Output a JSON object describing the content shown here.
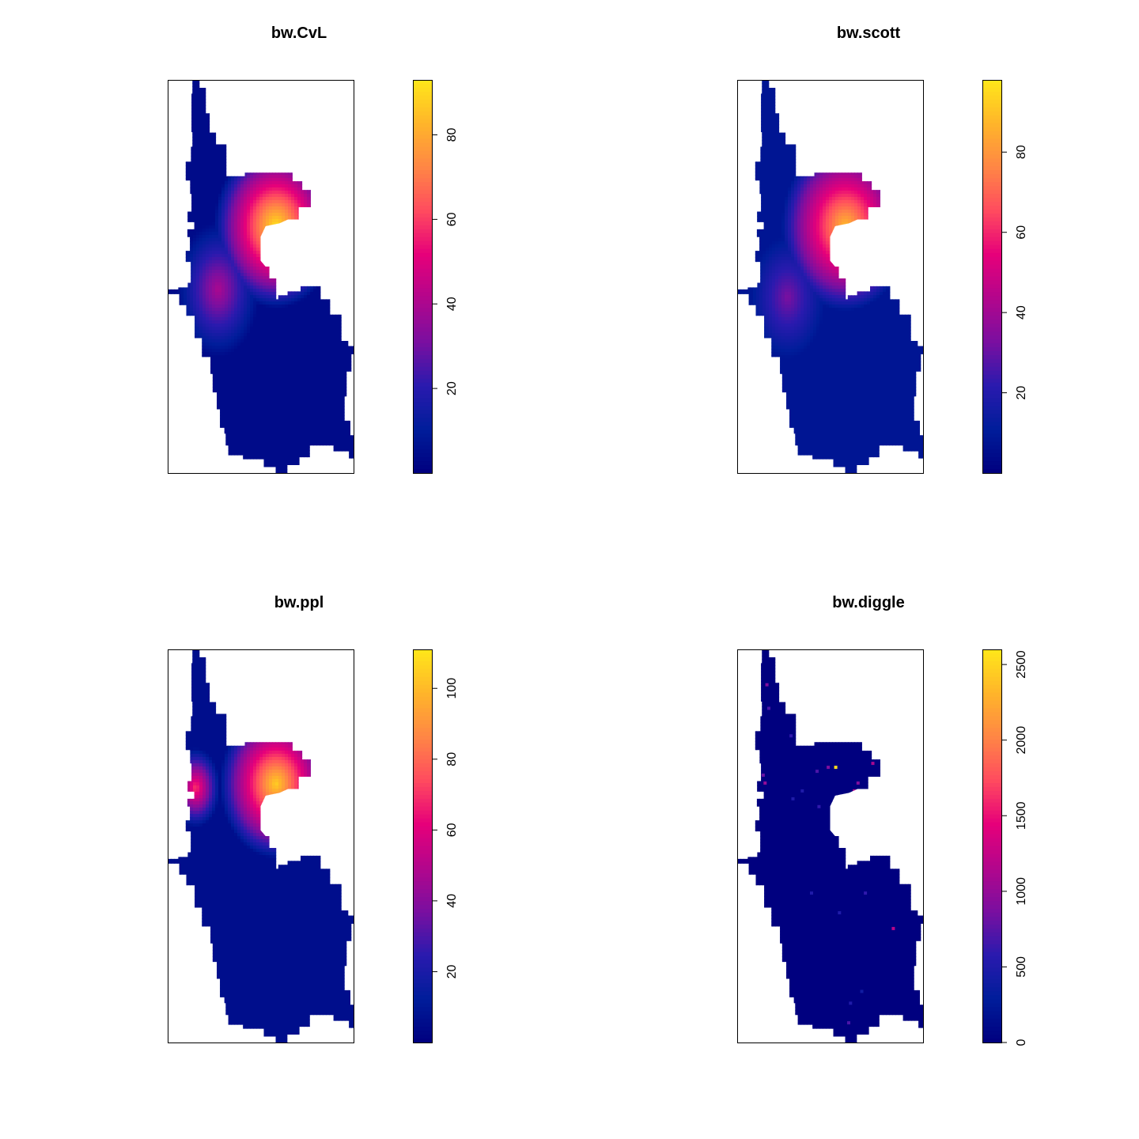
{
  "palette": [
    "#00007F",
    "#001D9A",
    "#2A1AAE",
    "#7A0FA0",
    "#B3068C",
    "#E6007A",
    "#FF4B5F",
    "#FF8645",
    "#FFB52A",
    "#FFE71A"
  ],
  "panel_border_color": "#000000",
  "chart_data": [
    {
      "type": "heatmap",
      "title": "bw.CvL",
      "colorbar": {
        "min": 0,
        "max": 93,
        "ticks": [
          20,
          40,
          60,
          80
        ]
      },
      "field": {
        "base": 4,
        "gradient": {
          "center": [
            0.58,
            0.37
          ],
          "radius": 0.33,
          "peak": 92
        },
        "neck": {
          "center": [
            0.27,
            0.53
          ],
          "radius": 0.22,
          "value": 40
        }
      }
    },
    {
      "type": "heatmap",
      "title": "bw.scott",
      "colorbar": {
        "min": 0,
        "max": 98,
        "ticks": [
          20,
          40,
          60,
          80
        ]
      },
      "field": {
        "base": 8,
        "gradient": {
          "center": [
            0.58,
            0.37
          ],
          "radius": 0.34,
          "peak": 88
        },
        "neck": {
          "center": [
            0.27,
            0.55
          ],
          "radius": 0.2,
          "value": 33
        }
      }
    },
    {
      "type": "heatmap",
      "title": "bw.ppl",
      "colorbar": {
        "min": 0,
        "max": 111,
        "ticks": [
          20,
          40,
          60,
          80,
          100
        ]
      },
      "field": {
        "base": 6,
        "gradient": {
          "center": [
            0.58,
            0.34
          ],
          "radius": 0.3,
          "peak": 105
        },
        "neck": {
          "center": [
            0.15,
            0.35
          ],
          "radius": 0.13,
          "value": 72
        }
      }
    },
    {
      "type": "heatmap",
      "title": "bw.diggle",
      "colorbar": {
        "min": 0,
        "max": 2600,
        "ticks": [
          0,
          500,
          1000,
          1500,
          2000,
          2500
        ]
      },
      "field": {
        "base": 0,
        "hotspots": [
          {
            "pos": [
              0.53,
              0.3
            ],
            "value": 2550
          },
          {
            "pos": [
              0.49,
              0.3
            ],
            "value": 900
          },
          {
            "pos": [
              0.43,
              0.31
            ],
            "value": 700
          },
          {
            "pos": [
              0.73,
              0.29
            ],
            "value": 1100
          },
          {
            "pos": [
              0.65,
              0.34
            ],
            "value": 900
          },
          {
            "pos": [
              0.63,
              0.36
            ],
            "value": 1200
          },
          {
            "pos": [
              0.15,
              0.34
            ],
            "value": 1000
          },
          {
            "pos": [
              0.14,
              0.32
            ],
            "value": 800
          },
          {
            "pos": [
              0.16,
              0.09
            ],
            "value": 900
          },
          {
            "pos": [
              0.17,
              0.15
            ],
            "value": 700
          },
          {
            "pos": [
              0.29,
              0.22
            ],
            "value": 600
          },
          {
            "pos": [
              0.3,
              0.38
            ],
            "value": 500
          },
          {
            "pos": [
              0.84,
              0.71
            ],
            "value": 1200
          },
          {
            "pos": [
              0.4,
              0.62
            ],
            "value": 500
          },
          {
            "pos": [
              0.69,
              0.62
            ],
            "value": 600
          },
          {
            "pos": [
              0.55,
              0.67
            ],
            "value": 500
          },
          {
            "pos": [
              0.67,
              0.87
            ],
            "value": 400
          },
          {
            "pos": [
              0.61,
              0.9
            ],
            "value": 500
          },
          {
            "pos": [
              0.6,
              0.95
            ],
            "value": 700
          },
          {
            "pos": [
              0.44,
              0.4
            ],
            "value": 600
          },
          {
            "pos": [
              0.35,
              0.36
            ],
            "value": 500
          },
          {
            "pos": [
              0.8,
              0.27
            ],
            "value": 500
          }
        ]
      }
    }
  ]
}
